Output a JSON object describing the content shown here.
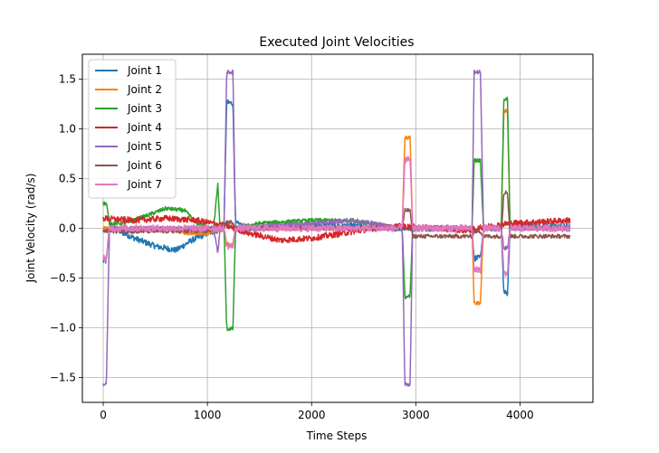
{
  "chart_data": {
    "type": "line",
    "title": "Executed Joint Velocities",
    "xlabel": "Time Steps",
    "ylabel": "Joint Velocity (rad/s)",
    "xlim": [
      -200,
      4700
    ],
    "ylim": [
      -1.75,
      1.75
    ],
    "xticks": [
      0,
      1000,
      2000,
      3000,
      4000
    ],
    "yticks": [
      -1.5,
      -1.0,
      -0.5,
      0.0,
      0.5,
      1.0,
      1.5
    ],
    "ytick_labels": [
      "−1.5",
      "−1.0",
      "−0.5",
      "0.0",
      "0.5",
      "1.0",
      "1.5"
    ],
    "grid": true,
    "legend_position": "top-left",
    "series": [
      {
        "name": "Joint 1",
        "color": "#1f77b4",
        "noise": 0.03,
        "points": [
          [
            0,
            -0.33
          ],
          [
            30,
            -0.33
          ],
          [
            60,
            0.0
          ],
          [
            100,
            0.0
          ],
          [
            300,
            -0.1
          ],
          [
            500,
            -0.18
          ],
          [
            700,
            -0.22
          ],
          [
            850,
            -0.12
          ],
          [
            1000,
            -0.05
          ],
          [
            1100,
            -0.02
          ],
          [
            1120,
            0.0
          ],
          [
            1160,
            0.05
          ],
          [
            1185,
            1.26
          ],
          [
            1245,
            1.26
          ],
          [
            1270,
            0.05
          ],
          [
            1400,
            0.0
          ],
          [
            2000,
            0.03
          ],
          [
            2500,
            0.02
          ],
          [
            2850,
            0.0
          ],
          [
            3500,
            0.0
          ],
          [
            3540,
            0.0
          ],
          [
            3560,
            -0.3
          ],
          [
            3620,
            -0.3
          ],
          [
            3650,
            0.0
          ],
          [
            3820,
            0.0
          ],
          [
            3845,
            -0.65
          ],
          [
            3880,
            -0.65
          ],
          [
            3905,
            0.0
          ],
          [
            4000,
            0.02
          ],
          [
            4480,
            0.02
          ]
        ]
      },
      {
        "name": "Joint 2",
        "color": "#ff7f0e",
        "noise": 0.02,
        "points": [
          [
            0,
            0.0
          ],
          [
            600,
            0.0
          ],
          [
            800,
            -0.05
          ],
          [
            1000,
            -0.05
          ],
          [
            1160,
            -0.02
          ],
          [
            1185,
            -0.16
          ],
          [
            1245,
            -0.16
          ],
          [
            1270,
            0.0
          ],
          [
            2000,
            0.0
          ],
          [
            2850,
            0.0
          ],
          [
            2870,
            0.0
          ],
          [
            2895,
            0.91
          ],
          [
            2945,
            0.91
          ],
          [
            2970,
            0.0
          ],
          [
            3500,
            0.0
          ],
          [
            3540,
            0.0
          ],
          [
            3560,
            -0.75
          ],
          [
            3620,
            -0.75
          ],
          [
            3650,
            0.0
          ],
          [
            3820,
            0.0
          ],
          [
            3845,
            1.18
          ],
          [
            3880,
            1.18
          ],
          [
            3905,
            0.0
          ],
          [
            4480,
            0.0
          ]
        ]
      },
      {
        "name": "Joint 3",
        "color": "#2ca02c",
        "noise": 0.02,
        "points": [
          [
            0,
            0.25
          ],
          [
            30,
            0.25
          ],
          [
            60,
            0.05
          ],
          [
            200,
            0.05
          ],
          [
            400,
            0.12
          ],
          [
            600,
            0.2
          ],
          [
            780,
            0.18
          ],
          [
            900,
            0.05
          ],
          [
            1060,
            0.0
          ],
          [
            1100,
            0.45
          ],
          [
            1120,
            0.0
          ],
          [
            1160,
            0.0
          ],
          [
            1185,
            -1.01
          ],
          [
            1245,
            -1.01
          ],
          [
            1270,
            0.0
          ],
          [
            1500,
            0.05
          ],
          [
            2000,
            0.08
          ],
          [
            2400,
            0.08
          ],
          [
            2850,
            0.0
          ],
          [
            2870,
            0.0
          ],
          [
            2895,
            -0.69
          ],
          [
            2945,
            -0.69
          ],
          [
            2970,
            0.0
          ],
          [
            3500,
            0.0
          ],
          [
            3540,
            0.0
          ],
          [
            3560,
            0.68
          ],
          [
            3620,
            0.68
          ],
          [
            3650,
            0.0
          ],
          [
            3820,
            0.0
          ],
          [
            3845,
            1.3
          ],
          [
            3880,
            1.3
          ],
          [
            3905,
            0.0
          ],
          [
            4480,
            0.0
          ]
        ]
      },
      {
        "name": "Joint 4",
        "color": "#d62728",
        "noise": 0.03,
        "points": [
          [
            0,
            0.1
          ],
          [
            300,
            0.08
          ],
          [
            600,
            0.1
          ],
          [
            900,
            0.08
          ],
          [
            1200,
            0.02
          ],
          [
            1400,
            -0.05
          ],
          [
            1700,
            -0.12
          ],
          [
            2000,
            -0.1
          ],
          [
            2300,
            -0.05
          ],
          [
            2600,
            0.0
          ],
          [
            2850,
            0.02
          ],
          [
            3200,
            0.0
          ],
          [
            3500,
            -0.02
          ],
          [
            3700,
            0.02
          ],
          [
            3900,
            0.05
          ],
          [
            4480,
            0.08
          ]
        ]
      },
      {
        "name": "Joint 5",
        "color": "#9467bd",
        "noise": 0.02,
        "points": [
          [
            0,
            -1.57
          ],
          [
            30,
            -1.57
          ],
          [
            60,
            0.0
          ],
          [
            1060,
            0.0
          ],
          [
            1100,
            -0.25
          ],
          [
            1120,
            0.0
          ],
          [
            1160,
            0.0
          ],
          [
            1185,
            1.57
          ],
          [
            1245,
            1.57
          ],
          [
            1270,
            0.0
          ],
          [
            2000,
            0.05
          ],
          [
            2400,
            0.08
          ],
          [
            2600,
            0.05
          ],
          [
            2850,
            0.0
          ],
          [
            2870,
            0.0
          ],
          [
            2895,
            -1.57
          ],
          [
            2945,
            -1.57
          ],
          [
            2970,
            0.0
          ],
          [
            3500,
            0.0
          ],
          [
            3540,
            0.0
          ],
          [
            3560,
            1.57
          ],
          [
            3620,
            1.57
          ],
          [
            3650,
            0.0
          ],
          [
            3820,
            0.0
          ],
          [
            3845,
            -0.2
          ],
          [
            3880,
            -0.2
          ],
          [
            3905,
            0.0
          ],
          [
            4480,
            0.0
          ]
        ]
      },
      {
        "name": "Joint 6",
        "color": "#8c564b",
        "noise": 0.02,
        "points": [
          [
            0,
            -0.03
          ],
          [
            1000,
            -0.03
          ],
          [
            1160,
            0.03
          ],
          [
            1185,
            0.06
          ],
          [
            1245,
            0.06
          ],
          [
            1270,
            0.0
          ],
          [
            2000,
            0.0
          ],
          [
            2850,
            0.0
          ],
          [
            2870,
            0.0
          ],
          [
            2895,
            0.18
          ],
          [
            2945,
            0.18
          ],
          [
            2970,
            -0.08
          ],
          [
            3500,
            -0.08
          ],
          [
            3540,
            -0.08
          ],
          [
            3560,
            -0.03
          ],
          [
            3620,
            -0.03
          ],
          [
            3650,
            -0.08
          ],
          [
            3820,
            -0.08
          ],
          [
            3845,
            0.36
          ],
          [
            3880,
            0.36
          ],
          [
            3905,
            -0.08
          ],
          [
            4480,
            -0.08
          ]
        ]
      },
      {
        "name": "Joint 7",
        "color": "#e377c2",
        "noise": 0.035,
        "points": [
          [
            0,
            -0.3
          ],
          [
            30,
            -0.3
          ],
          [
            60,
            0.0
          ],
          [
            1160,
            0.0
          ],
          [
            1185,
            -0.18
          ],
          [
            1245,
            -0.18
          ],
          [
            1270,
            0.0
          ],
          [
            2850,
            0.0
          ],
          [
            2870,
            0.0
          ],
          [
            2895,
            0.69
          ],
          [
            2945,
            0.69
          ],
          [
            2970,
            0.0
          ],
          [
            3500,
            0.0
          ],
          [
            3540,
            0.0
          ],
          [
            3560,
            -0.42
          ],
          [
            3620,
            -0.42
          ],
          [
            3650,
            0.0
          ],
          [
            3820,
            0.0
          ],
          [
            3845,
            -0.45
          ],
          [
            3880,
            -0.45
          ],
          [
            3905,
            0.0
          ],
          [
            4480,
            0.0
          ]
        ]
      }
    ]
  }
}
